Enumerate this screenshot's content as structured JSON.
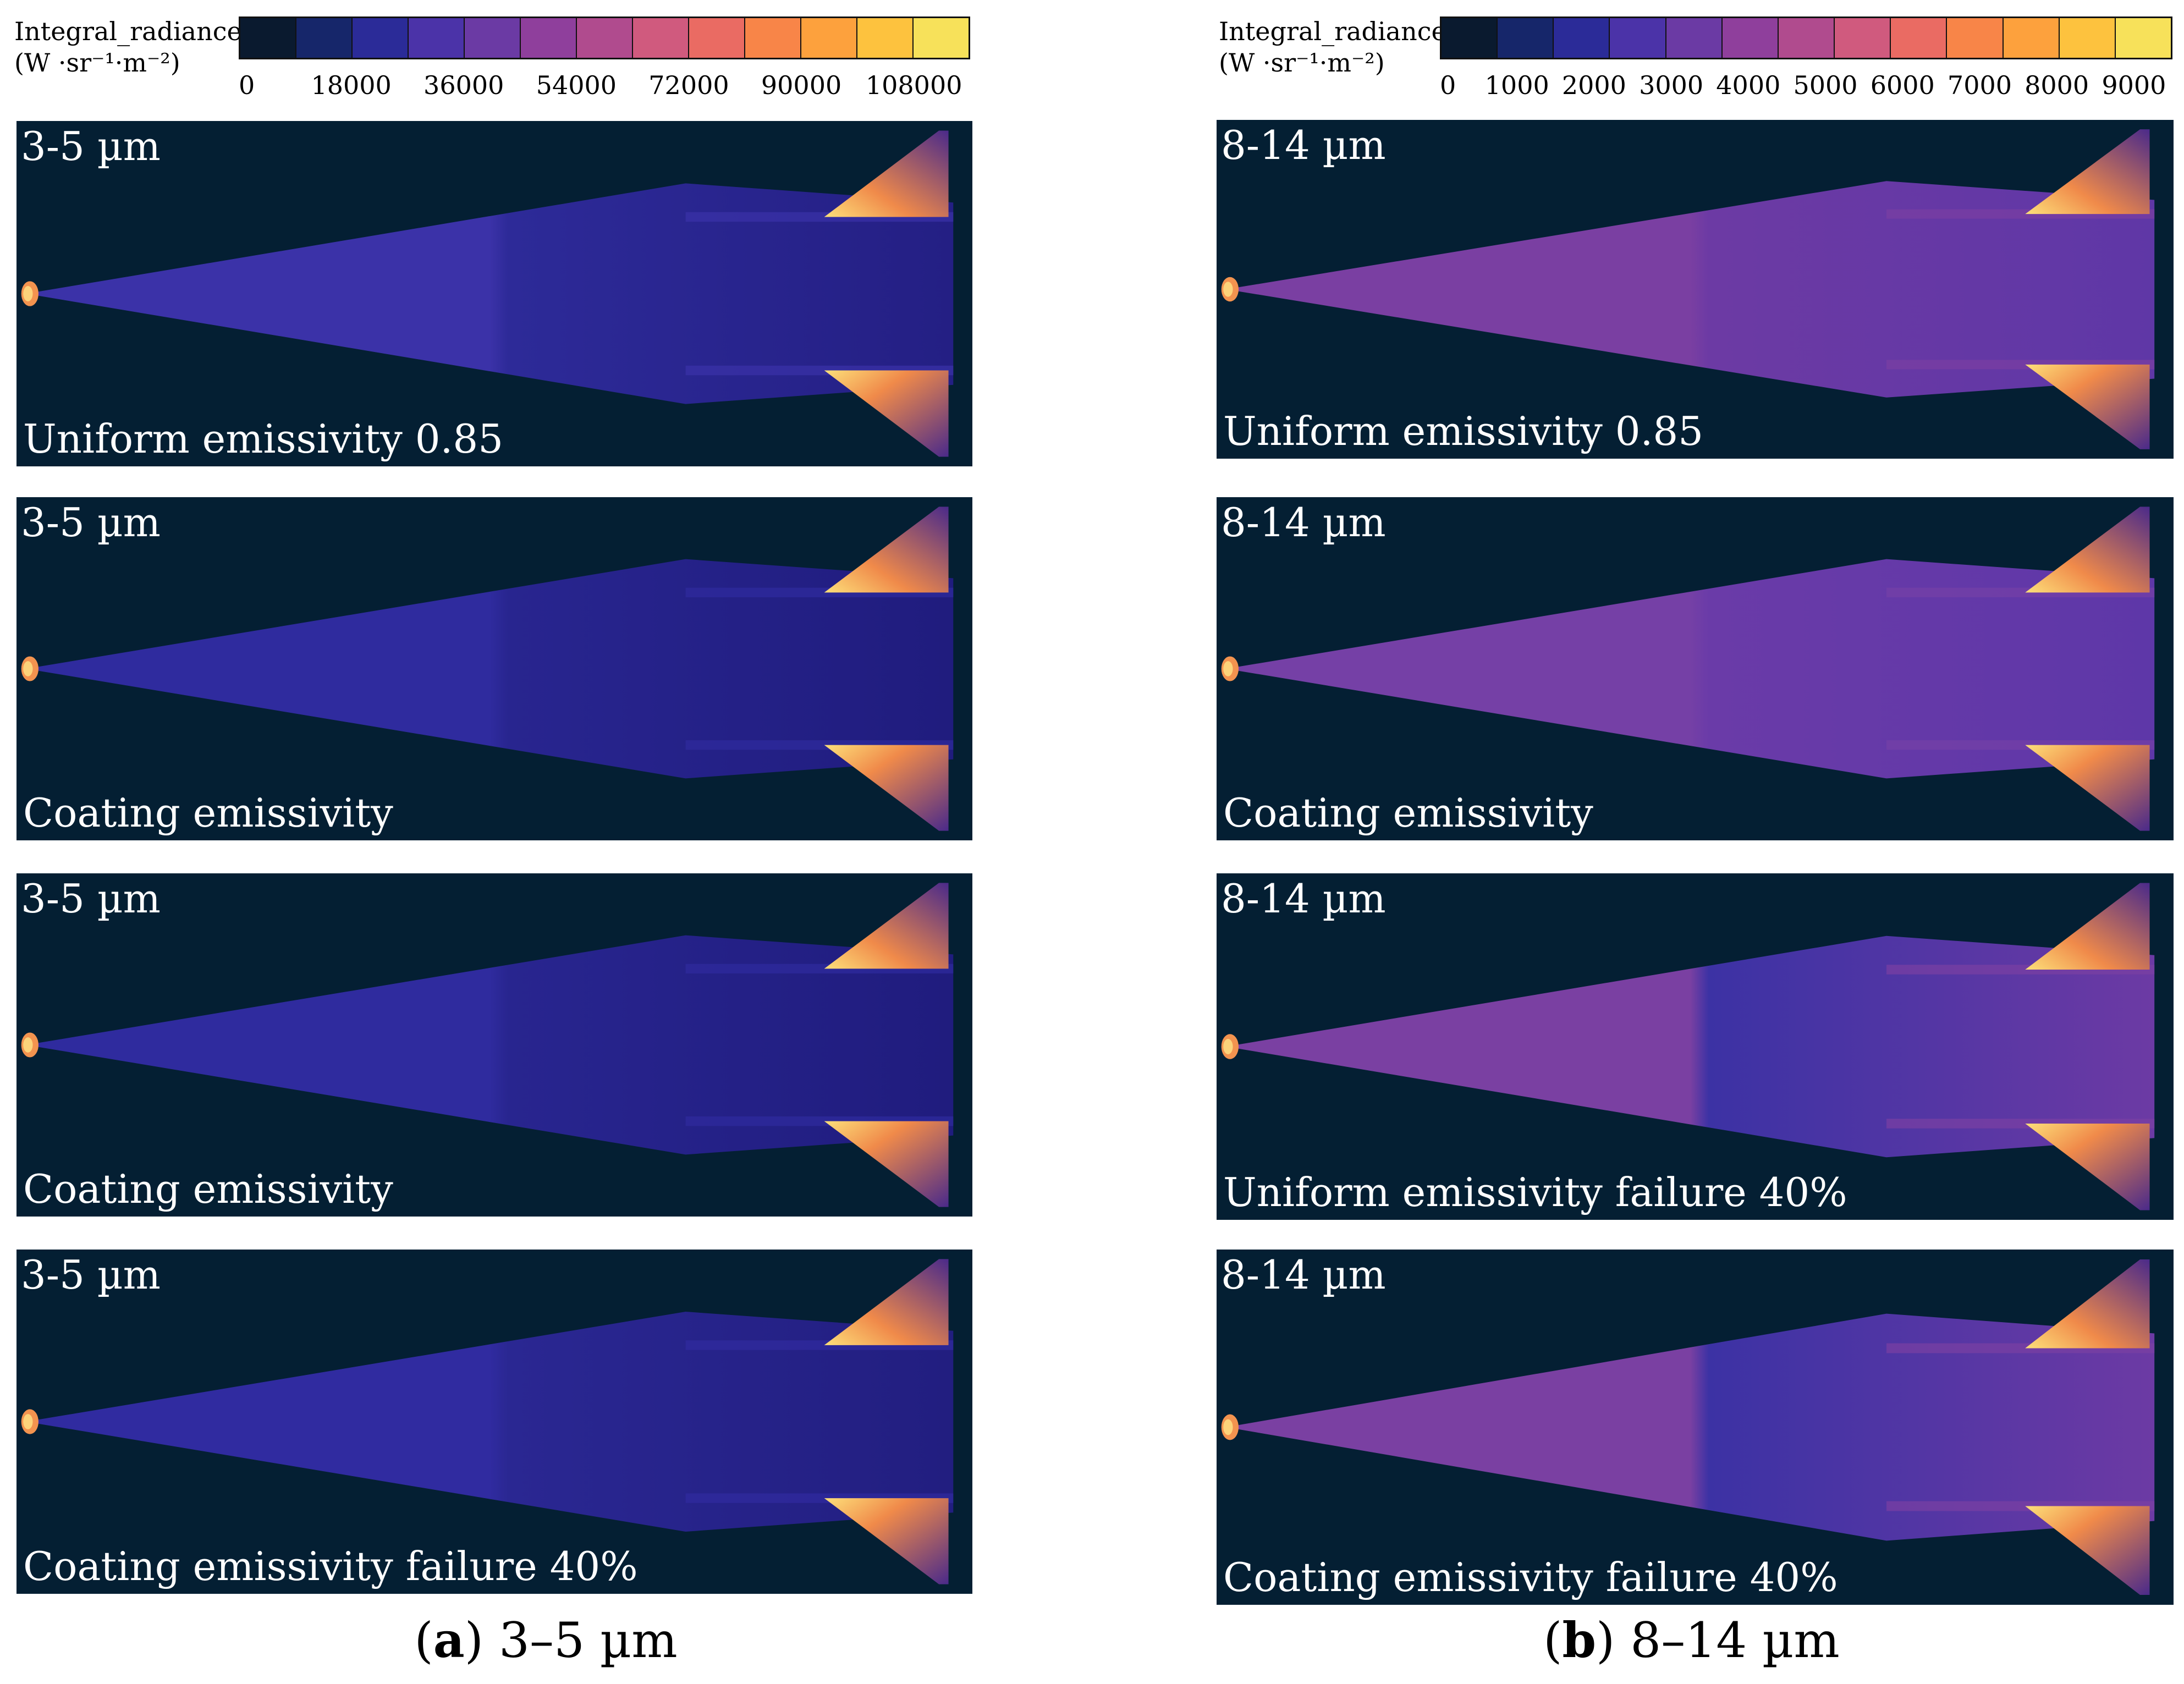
{
  "left": {
    "colorbar": {
      "title_line1": "Integral_radiance",
      "title_line2": "(W ·sr⁻¹·m⁻²)",
      "ticks": [
        "0",
        "18000",
        "36000",
        "54000",
        "72000",
        "90000",
        "108000"
      ],
      "min": 0,
      "max": 117000,
      "segment_colors": [
        "#0a1a2f",
        "#16266a",
        "#2b2b98",
        "#4b33a8",
        "#6b3aa4",
        "#8f3f9c",
        "#b04b8e",
        "#d05a7e",
        "#ea6b63",
        "#f88548",
        "#fda13d",
        "#fdc23e",
        "#f7e15a"
      ]
    },
    "panels": [
      {
        "band": "3-5 µm",
        "caption": "Uniform emissivity 0.85",
        "fuselage_colors": [
          "#3b32a8",
          "#2d2a98",
          "#241f84"
        ]
      },
      {
        "band": "3-5 µm",
        "caption": "Coating emissivity",
        "fuselage_colors": [
          "#2f2b9e",
          "#28258f",
          "#201c7e"
        ]
      },
      {
        "band": "3-5 µm",
        "caption": "Coating emissivity",
        "fuselage_colors": [
          "#2f2b9e",
          "#28258f",
          "#201c7e"
        ]
      },
      {
        "band": "3-5 µm",
        "caption": "Coating emissivity failure 40%",
        "fuselage_colors": [
          "#302ba0",
          "#2a2792",
          "#221e80"
        ]
      }
    ],
    "subcaption": {
      "letter": "a",
      "text": " 3–5 µm"
    }
  },
  "right": {
    "colorbar": {
      "title_line1": "Integral_radiance",
      "title_line2": "(W ·sr⁻¹·m⁻²)",
      "ticks": [
        "0",
        "1000",
        "2000",
        "3000",
        "4000",
        "5000",
        "6000",
        "7000",
        "8000",
        "9000"
      ],
      "min": 0,
      "max": 9500,
      "segment_colors": [
        "#0a1a2f",
        "#16266a",
        "#2b2b98",
        "#4b33a8",
        "#6b3aa4",
        "#8f3f9c",
        "#b04b8e",
        "#d05a7e",
        "#ea6b63",
        "#f88548",
        "#fda13d",
        "#fdc23e",
        "#f7e15a"
      ]
    },
    "panels": [
      {
        "band": "8-14 µm",
        "caption": "Uniform emissivity 0.85",
        "fuselage_colors": [
          "#7a3fa2",
          "#6c3aa4",
          "#5f37a6"
        ]
      },
      {
        "band": "8-14 µm",
        "caption": "Coating emissivity",
        "fuselage_colors": [
          "#7540a6",
          "#6a3ba8",
          "#5e37a8"
        ]
      },
      {
        "band": "8-14 µm",
        "caption": "Uniform emissivity failure 40%",
        "fuselage_colors": [
          "#7a40a2",
          "#3c32a4",
          "#6c3aa4"
        ]
      },
      {
        "band": "8-14 µm",
        "caption": "Coating emissivity failure 40%",
        "fuselage_colors": [
          "#7a40a2",
          "#3c32a4",
          "#6c3aa4"
        ]
      }
    ],
    "subcaption": {
      "letter": "b",
      "text": " 8–14 µm"
    }
  }
}
